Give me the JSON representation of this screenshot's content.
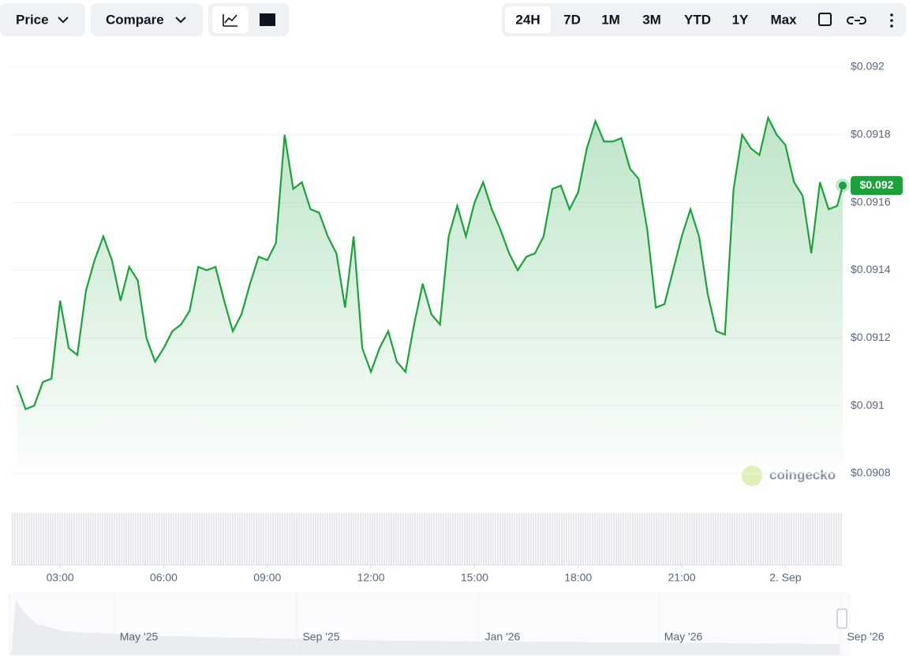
{
  "toolbar": {
    "price": "Price",
    "compare": "Compare",
    "ranges": [
      "24H",
      "7D",
      "1M",
      "3M",
      "YTD",
      "1Y",
      "Max"
    ],
    "active_range": "24H"
  },
  "chart_data": {
    "type": "line",
    "color": "#19a33a",
    "x": [
      1.75,
      2,
      2.25,
      2.5,
      2.75,
      3,
      3.25,
      3.5,
      3.75,
      4,
      4.25,
      4.5,
      4.75,
      5,
      5.25,
      5.5,
      5.75,
      6,
      6.25,
      6.5,
      6.75,
      7,
      7.25,
      7.5,
      7.75,
      8,
      8.25,
      8.5,
      8.75,
      9,
      9.25,
      9.5,
      9.75,
      10,
      10.25,
      10.5,
      10.75,
      11,
      11.25,
      11.5,
      11.75,
      12,
      12.25,
      12.5,
      12.75,
      13,
      13.25,
      13.5,
      13.75,
      14,
      14.25,
      14.5,
      14.75,
      15,
      15.25,
      15.5,
      15.75,
      16,
      16.25,
      16.5,
      16.75,
      17,
      17.25,
      17.5,
      17.75,
      18,
      18.25,
      18.5,
      18.75,
      19,
      19.25,
      19.5,
      19.75,
      20,
      20.25,
      20.5,
      20.75,
      21,
      21.25,
      21.5,
      21.75,
      22,
      22.25,
      22.5,
      22.75,
      23,
      23.25,
      23.5,
      23.75,
      24,
      24.25,
      24.5,
      24.75,
      25,
      25.25,
      25.5,
      25.66
    ],
    "values": [
      0.09106,
      0.09099,
      0.091,
      0.09107,
      0.09108,
      0.09131,
      0.09117,
      0.09115,
      0.09134,
      0.09143,
      0.0915,
      0.09143,
      0.09131,
      0.09141,
      0.09137,
      0.0912,
      0.09113,
      0.09117,
      0.09122,
      0.09124,
      0.09128,
      0.09141,
      0.0914,
      0.09141,
      0.09131,
      0.09122,
      0.09127,
      0.09136,
      0.09144,
      0.09143,
      0.09148,
      0.0918,
      0.09164,
      0.09166,
      0.09158,
      0.09157,
      0.0915,
      0.09145,
      0.09129,
      0.0915,
      0.09117,
      0.0911,
      0.09117,
      0.09122,
      0.09113,
      0.0911,
      0.09124,
      0.09136,
      0.09127,
      0.09124,
      0.0915,
      0.09159,
      0.0915,
      0.0916,
      0.09166,
      0.09158,
      0.09152,
      0.09145,
      0.0914,
      0.09144,
      0.09145,
      0.0915,
      0.09164,
      0.09165,
      0.09158,
      0.09163,
      0.09176,
      0.09184,
      0.09178,
      0.09178,
      0.09179,
      0.0917,
      0.09167,
      0.09152,
      0.09129,
      0.0913,
      0.0914,
      0.0915,
      0.09158,
      0.0915,
      0.09133,
      0.09122,
      0.09121,
      0.09164,
      0.0918,
      0.09176,
      0.09174,
      0.09185,
      0.0918,
      0.09177,
      0.09166,
      0.09162,
      0.09145,
      0.09166,
      0.09158,
      0.09159,
      0.09165
    ],
    "price_tag": "$0.092",
    "xlim": [
      1.58,
      25.66
    ],
    "xticks": [
      {
        "value": 3,
        "label": "03:00"
      },
      {
        "value": 6,
        "label": "06:00"
      },
      {
        "value": 9,
        "label": "09:00"
      },
      {
        "value": 12,
        "label": "12:00"
      },
      {
        "value": 15,
        "label": "15:00"
      },
      {
        "value": 18,
        "label": "18:00"
      },
      {
        "value": 21,
        "label": "21:00"
      },
      {
        "value": 24,
        "label": "2. Sep"
      }
    ],
    "ylim": [
      0.09078,
      0.09208
    ],
    "yticks": [
      {
        "value": 0.0908,
        "label": "$0.0908"
      },
      {
        "value": 0.091,
        "label": "$0.091"
      },
      {
        "value": 0.0912,
        "label": "$0.0912"
      },
      {
        "value": 0.0914,
        "label": "$0.0914"
      },
      {
        "value": 0.0916,
        "label": "$0.0916"
      },
      {
        "value": 0.0918,
        "label": "$0.0918"
      },
      {
        "value": 0.092,
        "label": "$0.092"
      }
    ],
    "grid": true
  },
  "navigator": {
    "labels": [
      "May '25",
      "Sep '25",
      "Jan '26",
      "May '26",
      "Sep '26"
    ]
  },
  "watermark": "coingecko"
}
